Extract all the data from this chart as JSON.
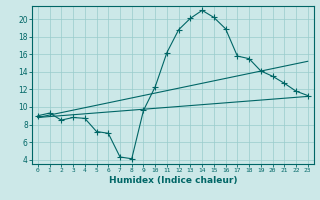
{
  "xlabel": "Humidex (Indice chaleur)",
  "bg_color": "#cce8e8",
  "line_color": "#006666",
  "grid_color": "#99cccc",
  "xlim": [
    -0.5,
    23.5
  ],
  "ylim": [
    3.5,
    21.5
  ],
  "xticks": [
    0,
    1,
    2,
    3,
    4,
    5,
    6,
    7,
    8,
    9,
    10,
    11,
    12,
    13,
    14,
    15,
    16,
    17,
    18,
    19,
    20,
    21,
    22,
    23
  ],
  "yticks": [
    4,
    6,
    8,
    10,
    12,
    14,
    16,
    18,
    20
  ],
  "curve1_x": [
    0,
    1,
    2,
    3,
    4,
    5,
    6,
    7,
    8,
    9,
    10,
    11,
    12,
    13,
    14,
    15,
    16,
    17,
    18,
    19,
    20,
    21,
    22,
    23
  ],
  "curve1_y": [
    9.0,
    9.3,
    8.5,
    8.8,
    8.7,
    7.2,
    7.0,
    4.3,
    4.1,
    9.6,
    12.3,
    16.2,
    18.8,
    20.1,
    21.0,
    20.2,
    18.9,
    15.8,
    15.5,
    14.1,
    13.5,
    12.7,
    11.8,
    11.3
  ],
  "curve2_x": [
    0,
    23
  ],
  "curve2_y": [
    8.8,
    15.2
  ],
  "curve3_x": [
    0,
    23
  ],
  "curve3_y": [
    8.8,
    11.2
  ],
  "marker_size": 4
}
